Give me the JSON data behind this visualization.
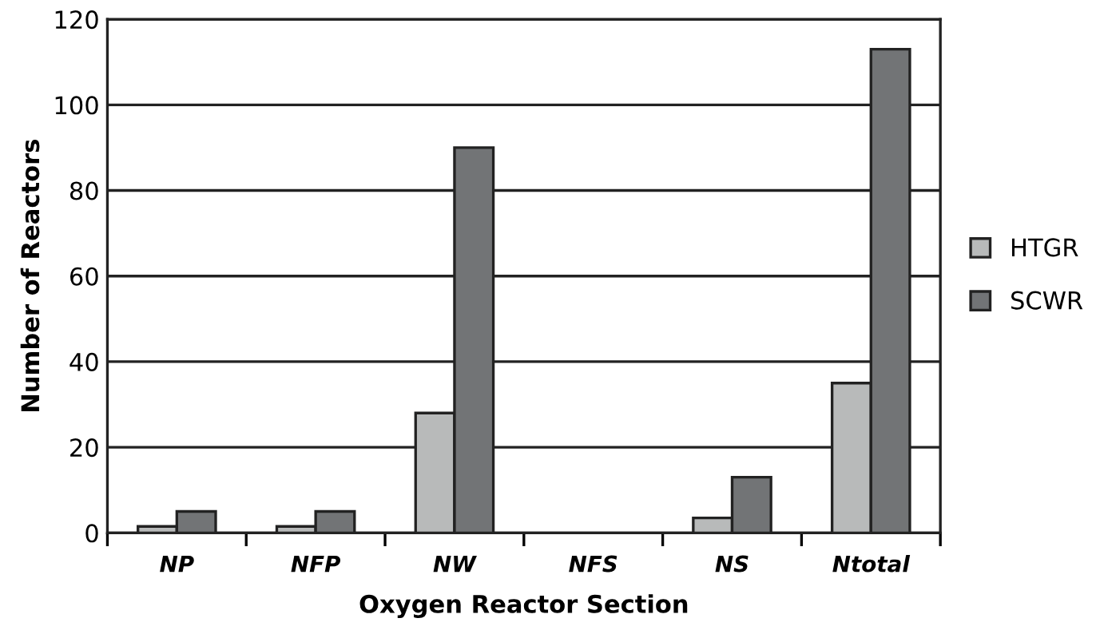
{
  "chart_data": {
    "type": "bar",
    "xlabel": "Oxygen Reactor Section",
    "ylabel": "Number of Reactors",
    "categories": [
      "NP",
      "NFP",
      "NW",
      "NFS",
      "NS",
      "Ntotal"
    ],
    "series": [
      {
        "name": "HTGR",
        "color": "#b8baba",
        "values": [
          1.5,
          1.5,
          28,
          null,
          3.5,
          35
        ]
      },
      {
        "name": "SCWR",
        "color": "#727476",
        "values": [
          5,
          5,
          90,
          null,
          13,
          113
        ]
      }
    ],
    "ylim": [
      0,
      120
    ],
    "yticks": [
      0,
      20,
      40,
      60,
      80,
      100,
      120
    ],
    "grid": "y",
    "legend": "right"
  }
}
